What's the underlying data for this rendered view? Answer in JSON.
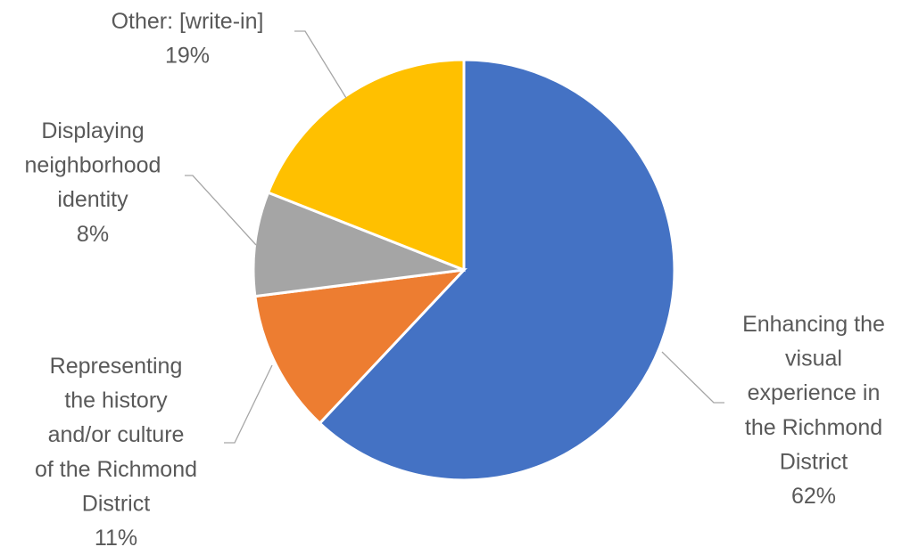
{
  "chart_data": {
    "type": "pie",
    "title": "",
    "slices": [
      {
        "label": "Enhancing the visual experience in the Richmond District",
        "value": 62,
        "value_label": "62%",
        "color": "#4472C4"
      },
      {
        "label": "Representing the history and/or culture of the Richmond District",
        "value": 11,
        "value_label": "11%",
        "color": "#ED7D31"
      },
      {
        "label": "Displaying neighborhood identity",
        "value": 8,
        "value_label": "8%",
        "color": "#A5A5A5"
      },
      {
        "label": "Other: [write-in]",
        "value": 19,
        "value_label": "19%",
        "color": "#FFC000"
      }
    ],
    "labels": [
      {
        "lines": [
          "Enhancing the",
          "visual",
          "experience in",
          "the Richmond",
          "District"
        ],
        "value_label": "62%"
      },
      {
        "lines": [
          "Representing",
          "the history",
          "and/or culture",
          "of the Richmond",
          "District"
        ],
        "value_label": "11%"
      },
      {
        "lines": [
          "Displaying",
          "neighborhood",
          "identity"
        ],
        "value_label": "8%"
      },
      {
        "lines": [
          "Other: [write-in]"
        ],
        "value_label": "19%"
      }
    ],
    "start_angle": "12 o'clock",
    "direction": "clockwise",
    "legend": "none"
  }
}
